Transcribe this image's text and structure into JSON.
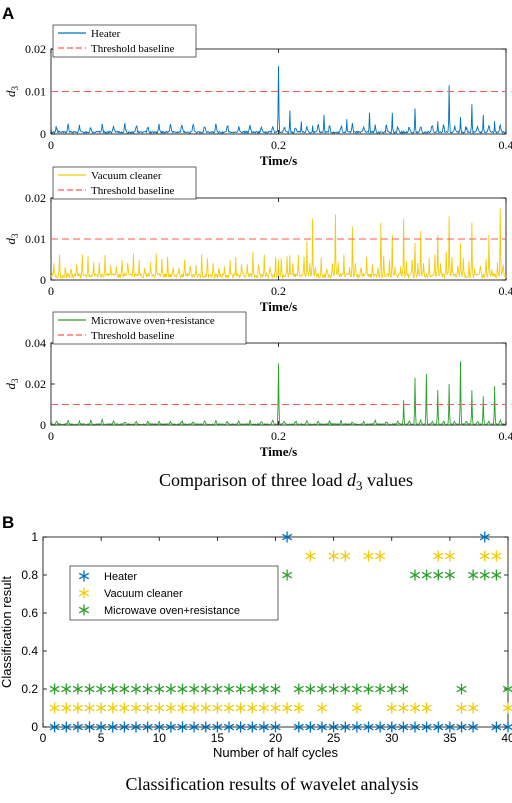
{
  "figure": {
    "panel_a_letter": "A",
    "panel_b_letter": "B",
    "caption_a_prefix": "Comparison of three load ",
    "caption_a_var": "d",
    "caption_a_sub": "3",
    "caption_a_suffix": " values",
    "caption_b": "Classification results of wavelet analysis"
  },
  "chart_data": [
    {
      "type": "line",
      "xlabel": "Time/s",
      "ylabel_var": "d",
      "ylabel_sub": "3",
      "xlim": [
        0,
        0.4
      ],
      "ylim": [
        0,
        0.02
      ],
      "xticks": [
        "0",
        "0.2",
        "0.4"
      ],
      "yticks": [
        "0",
        "0.01",
        "0.02"
      ],
      "grid": false,
      "legend_position": "top-left",
      "threshold": 0.01,
      "series": [
        {
          "name": "Heater",
          "color": "#0072BD",
          "baseline": 0.0007,
          "period": 0.01,
          "start": 0.0,
          "peaks": [
            [
              0.2,
              0.016
            ],
            [
              0.21,
              0.0055
            ],
            [
              0.22,
              0.003
            ],
            [
              0.23,
              0.002
            ],
            [
              0.24,
              0.0045
            ],
            [
              0.26,
              0.0035
            ],
            [
              0.28,
              0.005
            ],
            [
              0.3,
              0.005
            ],
            [
              0.32,
              0.006
            ],
            [
              0.34,
              0.003
            ],
            [
              0.35,
              0.0115
            ],
            [
              0.36,
              0.004
            ],
            [
              0.37,
              0.007
            ],
            [
              0.38,
              0.0045
            ],
            [
              0.39,
              0.003
            ]
          ]
        },
        {
          "name": "Threshold baseline",
          "color": "#FF5A4F",
          "dashed": true
        }
      ]
    },
    {
      "type": "line",
      "xlabel": "Time/s",
      "ylabel_var": "d",
      "ylabel_sub": "3",
      "xlim": [
        0,
        0.4
      ],
      "ylim": [
        0,
        0.02
      ],
      "xticks": [
        "0",
        "0.2",
        "0.4"
      ],
      "yticks": [
        "0",
        "0.01",
        "0.02"
      ],
      "grid": false,
      "legend_position": "top-left",
      "threshold": 0.01,
      "series": [
        {
          "name": "Vacuum cleaner",
          "color": "#F2CC0C",
          "baseline": 0.0018,
          "period": 0.005,
          "start": 0.0,
          "peaks": [
            [
              0.2,
              0.005
            ],
            [
              0.21,
              0.006
            ],
            [
              0.225,
              0.0095
            ],
            [
              0.23,
              0.015
            ],
            [
              0.25,
              0.016
            ],
            [
              0.265,
              0.013
            ],
            [
              0.29,
              0.014
            ],
            [
              0.3,
              0.011
            ],
            [
              0.31,
              0.015
            ],
            [
              0.32,
              0.009
            ],
            [
              0.325,
              0.012
            ],
            [
              0.34,
              0.011
            ],
            [
              0.35,
              0.0155
            ],
            [
              0.36,
              0.009
            ],
            [
              0.37,
              0.014
            ],
            [
              0.385,
              0.011
            ],
            [
              0.395,
              0.0175
            ]
          ]
        },
        {
          "name": "Threshold baseline",
          "color": "#FF5A4F",
          "dashed": true
        }
      ]
    },
    {
      "type": "line",
      "xlabel": "Time/s",
      "ylabel_var": "d",
      "ylabel_sub": "3",
      "xlim": [
        0,
        0.4
      ],
      "ylim": [
        0,
        0.04
      ],
      "xticks": [
        "0",
        "0.2",
        "0.4"
      ],
      "yticks": [
        "0",
        "0.02",
        "0.04"
      ],
      "grid": false,
      "legend_position": "top-left",
      "threshold": 0.01,
      "series": [
        {
          "name": "Microwave oven+resistance",
          "color": "#2CA02C",
          "baseline": 0.0007,
          "period": 0.01,
          "start": 0.0,
          "peaks": [
            [
              0.2,
              0.03
            ],
            [
              0.31,
              0.012
            ],
            [
              0.32,
              0.023
            ],
            [
              0.33,
              0.025
            ],
            [
              0.34,
              0.017
            ],
            [
              0.35,
              0.02
            ],
            [
              0.36,
              0.031
            ],
            [
              0.37,
              0.017
            ],
            [
              0.38,
              0.014
            ],
            [
              0.39,
              0.019
            ]
          ]
        },
        {
          "name": "Threshold baseline",
          "color": "#FF5A4F",
          "dashed": true
        }
      ]
    },
    {
      "type": "scatter",
      "xlabel": "Number of half cycles",
      "ylabel": "Classification result",
      "xlim": [
        0,
        40
      ],
      "ylim": [
        0,
        1
      ],
      "xticks": [
        "0",
        "5",
        "10",
        "15",
        "20",
        "25",
        "30",
        "35",
        "40"
      ],
      "yticks": [
        "0",
        "0.2",
        "0.4",
        "0.6",
        "0.8",
        "1"
      ],
      "grid": false,
      "legend_position": "top-left",
      "marker": "*",
      "series": [
        {
          "name": "Heater",
          "color": "#0072BD",
          "x": [
            1,
            2,
            3,
            4,
            5,
            6,
            7,
            8,
            9,
            10,
            11,
            12,
            13,
            14,
            15,
            16,
            17,
            18,
            19,
            20,
            21,
            22,
            23,
            24,
            25,
            26,
            27,
            28,
            29,
            30,
            31,
            32,
            33,
            34,
            35,
            36,
            37,
            38,
            39,
            40
          ],
          "y": [
            0,
            0,
            0,
            0,
            0,
            0,
            0,
            0,
            0,
            0,
            0,
            0,
            0,
            0,
            0,
            0,
            0,
            0,
            0,
            0,
            1,
            0,
            0,
            0,
            0,
            0,
            0,
            0,
            0,
            0,
            0,
            0,
            0,
            0,
            0,
            0,
            0,
            1,
            0,
            0
          ]
        },
        {
          "name": "Vacuum cleaner",
          "color": "#F2CC0C",
          "x": [
            1,
            2,
            3,
            4,
            5,
            6,
            7,
            8,
            9,
            10,
            11,
            12,
            13,
            14,
            15,
            16,
            17,
            18,
            19,
            20,
            21,
            22,
            23,
            24,
            25,
            26,
            27,
            28,
            29,
            30,
            31,
            32,
            33,
            34,
            35,
            36,
            37,
            38,
            39,
            40
          ],
          "y": [
            0.1,
            0.1,
            0.1,
            0.1,
            0.1,
            0.1,
            0.1,
            0.1,
            0.1,
            0.1,
            0.1,
            0.1,
            0.1,
            0.1,
            0.1,
            0.1,
            0.1,
            0.1,
            0.1,
            0.1,
            0.1,
            0.1,
            0.9,
            0.1,
            0.9,
            0.9,
            0.1,
            0.9,
            0.9,
            0.1,
            0.1,
            0.1,
            0.1,
            0.9,
            0.9,
            0.1,
            0.1,
            0.9,
            0.9,
            0.1
          ]
        },
        {
          "name": "Microwave oven+resistance",
          "color": "#2CA02C",
          "x": [
            1,
            2,
            3,
            4,
            5,
            6,
            7,
            8,
            9,
            10,
            11,
            12,
            13,
            14,
            15,
            16,
            17,
            18,
            19,
            20,
            21,
            22,
            23,
            24,
            25,
            26,
            27,
            28,
            29,
            30,
            31,
            32,
            33,
            34,
            35,
            36,
            37,
            38,
            39,
            40
          ],
          "y": [
            0.2,
            0.2,
            0.2,
            0.2,
            0.2,
            0.2,
            0.2,
            0.2,
            0.2,
            0.2,
            0.2,
            0.2,
            0.2,
            0.2,
            0.2,
            0.2,
            0.2,
            0.2,
            0.2,
            0.2,
            0.8,
            0.2,
            0.2,
            0.2,
            0.2,
            0.2,
            0.2,
            0.2,
            0.2,
            0.2,
            0.2,
            0.8,
            0.8,
            0.8,
            0.8,
            0.2,
            0.8,
            0.8,
            0.8,
            0.2
          ]
        }
      ]
    }
  ]
}
